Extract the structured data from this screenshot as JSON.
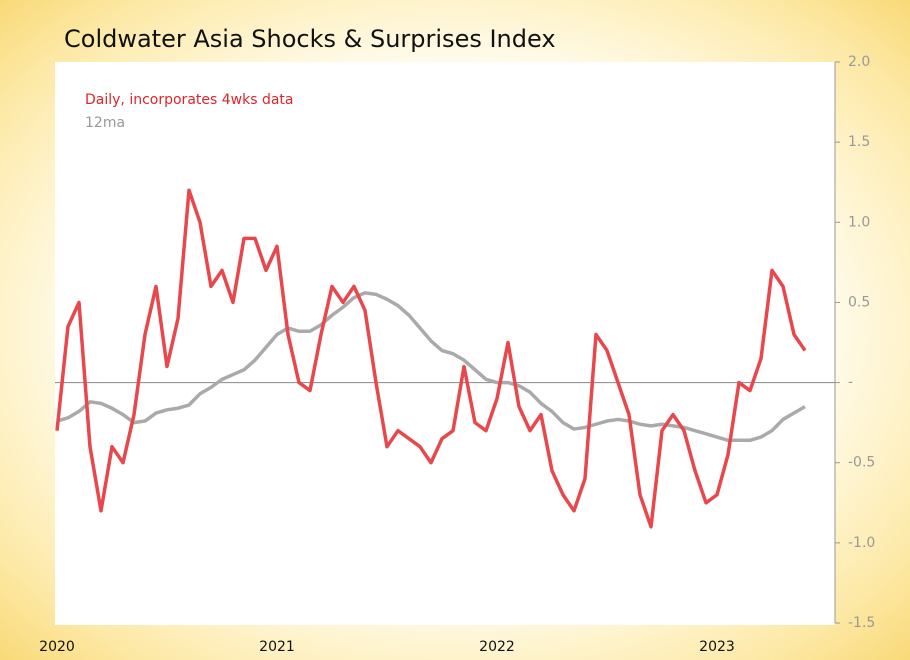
{
  "chart_data": {
    "type": "line",
    "title": "Coldwater Asia Shocks & Surprises Index",
    "categories": [
      "2020",
      null,
      null,
      null,
      null,
      null,
      null,
      null,
      null,
      null,
      null,
      null,
      null,
      null,
      null,
      null,
      null,
      null,
      null,
      null,
      "2021",
      null,
      null,
      null,
      null,
      null,
      null,
      null,
      null,
      null,
      null,
      null,
      null,
      null,
      null,
      null,
      null,
      null,
      null,
      null,
      "2022",
      null,
      null,
      null,
      null,
      null,
      null,
      null,
      null,
      null,
      null,
      null,
      null,
      null,
      null,
      null,
      null,
      null,
      null,
      null,
      "2023",
      null,
      null,
      null,
      null,
      null,
      null,
      null,
      null
    ],
    "series": [
      {
        "name": "Daily, incorporates 4wks data",
        "color": "#e8474c",
        "values": [
          -0.3,
          0.35,
          0.5,
          -0.4,
          -0.8,
          -0.4,
          -0.5,
          -0.2,
          0.3,
          0.6,
          0.1,
          0.4,
          1.2,
          1.0,
          0.6,
          0.7,
          0.5,
          0.9,
          0.9,
          0.7,
          0.85,
          0.3,
          0.0,
          -0.05,
          0.3,
          0.6,
          0.5,
          0.6,
          0.45,
          0.0,
          -0.4,
          -0.3,
          -0.35,
          -0.4,
          -0.5,
          -0.35,
          -0.3,
          0.1,
          -0.25,
          -0.3,
          -0.1,
          0.25,
          -0.15,
          -0.3,
          -0.2,
          -0.55,
          -0.7,
          -0.8,
          -0.6,
          0.3,
          0.2,
          0.0,
          -0.2,
          -0.7,
          -0.9,
          -0.3,
          -0.2,
          -0.3,
          -0.55,
          -0.75,
          -0.7,
          -0.45,
          0.0,
          -0.05,
          0.15,
          0.7,
          0.6,
          0.3,
          0.2
        ]
      },
      {
        "name": "12ma",
        "color": "#aaaaaa",
        "values": [
          -0.24,
          -0.22,
          -0.18,
          -0.12,
          -0.13,
          -0.16,
          -0.2,
          -0.25,
          -0.24,
          -0.19,
          -0.17,
          -0.16,
          -0.14,
          -0.07,
          -0.03,
          0.02,
          0.05,
          0.08,
          0.14,
          0.22,
          0.3,
          0.34,
          0.32,
          0.32,
          0.36,
          0.42,
          0.47,
          0.53,
          0.56,
          0.55,
          0.52,
          0.48,
          0.42,
          0.34,
          0.26,
          0.2,
          0.18,
          0.14,
          0.08,
          0.02,
          0.0,
          0.0,
          -0.02,
          -0.06,
          -0.13,
          -0.18,
          -0.25,
          -0.29,
          -0.28,
          -0.26,
          -0.24,
          -0.23,
          -0.24,
          -0.26,
          -0.27,
          -0.26,
          -0.27,
          -0.28,
          -0.3,
          -0.32,
          -0.34,
          -0.36,
          -0.36,
          -0.36,
          -0.34,
          -0.3,
          -0.23,
          -0.19,
          -0.15
        ]
      }
    ],
    "ylim": [
      -1.5,
      2.0
    ],
    "yticks": [
      -1.5,
      {
        "value": -1.0,
        "label": "-1.0"
      },
      -0.5,
      {
        "value": 0,
        "label": "-"
      },
      0.5,
      {
        "value": 1.0,
        "label": "1.0"
      },
      1.5,
      {
        "value": 2.0,
        "label": "2.0"
      }
    ],
    "zero_line": true
  }
}
